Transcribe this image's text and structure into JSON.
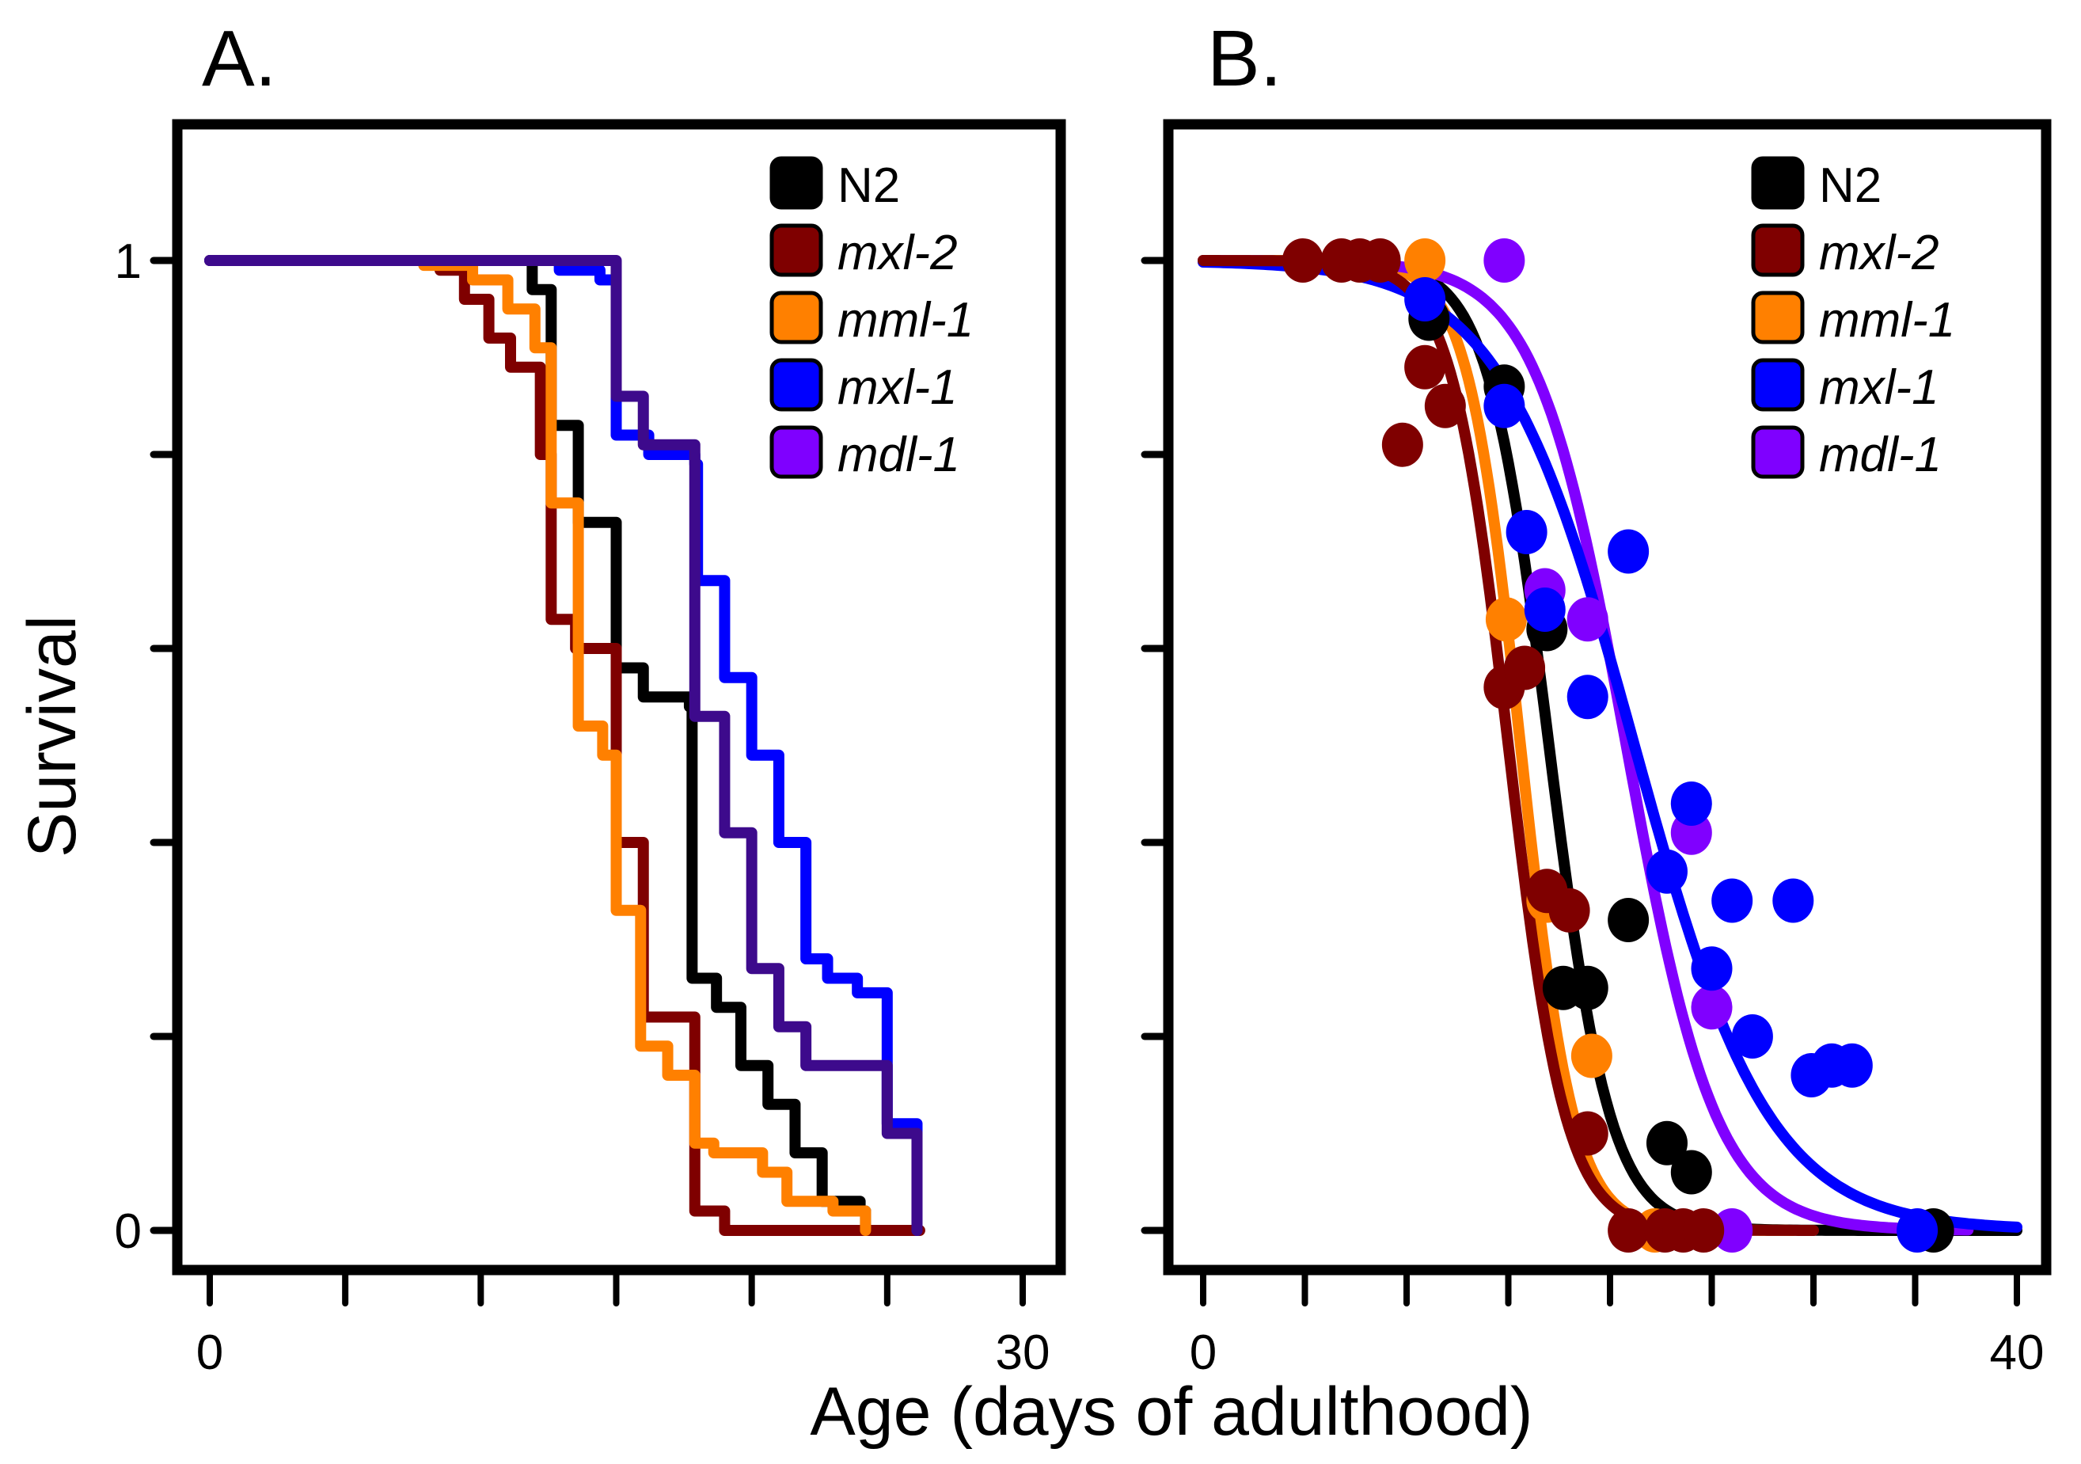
{
  "chart_data": [
    {
      "panel": "A.",
      "type": "line",
      "subtype": "step (Kaplan-Meier survival)",
      "xlabel": "Age (days of adulthood)",
      "ylabel": "Survival",
      "xlim": [
        0,
        30
      ],
      "ylim": [
        0,
        1
      ],
      "x_ticks": [
        0,
        5,
        10,
        15,
        20,
        25,
        30
      ],
      "x_tick_labels": [
        "0",
        "",
        "",
        "",
        "",
        "",
        "30"
      ],
      "y_ticks": [
        0,
        0.2,
        0.4,
        0.6,
        0.8,
        1
      ],
      "y_tick_labels": [
        "0",
        "",
        "",
        "",
        "",
        "1"
      ],
      "legend": {
        "position": "top-right",
        "entries": [
          "N2",
          "mxl-2",
          "mml-1",
          "mxl-1",
          "mdl-1"
        ],
        "italic": [
          false,
          true,
          true,
          true,
          true
        ]
      },
      "series": [
        {
          "name": "N2",
          "color": "#000000",
          "steps": [
            [
              0,
              1
            ],
            [
              11.9,
              0.97
            ],
            [
              12.6,
              0.83
            ],
            [
              13.6,
              0.73
            ],
            [
              15.0,
              0.58
            ],
            [
              16.0,
              0.55
            ],
            [
              17.7,
              0.54
            ],
            [
              17.8,
              0.26
            ],
            [
              18.7,
              0.23
            ],
            [
              19.6,
              0.17
            ],
            [
              20.6,
              0.13
            ],
            [
              21.6,
              0.08
            ],
            [
              22.6,
              0.03
            ],
            [
              24.0,
              0.02
            ],
            [
              24.2,
              0
            ]
          ],
          "end": 24.2
        },
        {
          "name": "mxl-2",
          "color": "#7F0000",
          "steps": [
            [
              0,
              1
            ],
            [
              8.5,
              0.99
            ],
            [
              9.4,
              0.96
            ],
            [
              10.3,
              0.92
            ],
            [
              11.1,
              0.89
            ],
            [
              12.2,
              0.8
            ],
            [
              12.6,
              0.63
            ],
            [
              13.5,
              0.6
            ],
            [
              15.0,
              0.4
            ],
            [
              16.0,
              0.22
            ],
            [
              17.9,
              0.02
            ],
            [
              19.0,
              0
            ]
          ],
          "end": 26.2
        },
        {
          "name": "mml-1",
          "color": "#FF8000",
          "steps": [
            [
              0,
              1
            ],
            [
              7.9,
              0.995
            ],
            [
              9.7,
              0.98
            ],
            [
              11.0,
              0.95
            ],
            [
              12.0,
              0.91
            ],
            [
              12.6,
              0.75
            ],
            [
              13.6,
              0.52
            ],
            [
              14.5,
              0.49
            ],
            [
              15.0,
              0.33
            ],
            [
              15.9,
              0.19
            ],
            [
              16.9,
              0.16
            ],
            [
              17.9,
              0.09
            ],
            [
              18.6,
              0.08
            ],
            [
              20.4,
              0.06
            ],
            [
              21.3,
              0.03
            ],
            [
              23.0,
              0.02
            ],
            [
              24.2,
              0
            ]
          ],
          "end": 24.2
        },
        {
          "name": "mxl-1",
          "color": "#0000FF",
          "steps": [
            [
              0,
              1
            ],
            [
              12.9,
              0.99
            ],
            [
              14.4,
              0.98
            ],
            [
              15.0,
              0.82
            ],
            [
              16.2,
              0.8
            ],
            [
              17.9,
              0.79
            ],
            [
              18.0,
              0.67
            ],
            [
              19.0,
              0.57
            ],
            [
              20.0,
              0.49
            ],
            [
              21.0,
              0.4
            ],
            [
              22.0,
              0.28
            ],
            [
              22.8,
              0.26
            ],
            [
              23.9,
              0.245
            ],
            [
              25.0,
              0.11
            ],
            [
              26.1,
              0
            ]
          ],
          "end": 26.1
        },
        {
          "name": "mdl-1",
          "color": "#3D0A8C",
          "steps": [
            [
              0,
              1
            ],
            [
              15.0,
              0.86
            ],
            [
              16.0,
              0.81
            ],
            [
              17.9,
              0.53
            ],
            [
              19.0,
              0.41
            ],
            [
              20.0,
              0.27
            ],
            [
              21.0,
              0.21
            ],
            [
              22.0,
              0.17
            ],
            [
              25.0,
              0.1
            ],
            [
              26.1,
              0
            ]
          ],
          "end": 26.1
        }
      ]
    },
    {
      "panel": "B.",
      "type": "scatter",
      "subtype": "scatter with fitted sigmoid survival curves",
      "xlabel": "Age (days of adulthood)",
      "ylabel": "Survival",
      "xlim": [
        0,
        40
      ],
      "ylim": [
        0,
        1
      ],
      "x_ticks": [
        0,
        5,
        10,
        15,
        20,
        25,
        30,
        35,
        40
      ],
      "x_tick_labels": [
        "0",
        "",
        "",
        "",
        "",
        "",
        "",
        "",
        "40"
      ],
      "y_ticks": [
        0,
        0.2,
        0.4,
        0.6,
        0.8,
        1
      ],
      "y_tick_labels": [
        "",
        "",
        "",
        "",
        "",
        ""
      ],
      "legend": {
        "position": "top-right",
        "entries": [
          "N2",
          "mxl-2",
          "mml-1",
          "mxl-1",
          "mdl-1"
        ],
        "italic": [
          false,
          true,
          true,
          true,
          true
        ]
      },
      "series": [
        {
          "name": "N2",
          "color": "#000000",
          "points": [
            [
              11.1,
              0.94
            ],
            [
              14.8,
              0.87
            ],
            [
              16.9,
              0.62
            ],
            [
              17.7,
              0.25
            ],
            [
              18.9,
              0.25
            ],
            [
              20.9,
              0.32
            ],
            [
              22.8,
              0.09
            ],
            [
              24.0,
              0.06
            ],
            [
              35.9,
              0
            ]
          ],
          "fit": {
            "model": "logistic",
            "median": 17.0,
            "scale": 1.5,
            "x_range": [
              0,
              40
            ]
          }
        },
        {
          "name": "mml-1",
          "color": "#FF8000",
          "points": [
            [
              10.9,
              1.0
            ],
            [
              14.9,
              0.63
            ],
            [
              16.9,
              0.34
            ],
            [
              19.1,
              0.18
            ],
            [
              22.2,
              0
            ]
          ],
          "fit": {
            "model": "logistic",
            "median": 15.6,
            "scale": 1.3,
            "x_range": [
              0,
              29
            ]
          }
        },
        {
          "name": "mdl-1",
          "color": "#8000FF",
          "points": [
            [
              14.8,
              1.0
            ],
            [
              16.8,
              0.66
            ],
            [
              18.9,
              0.63
            ],
            [
              24.0,
              0.41
            ],
            [
              25.0,
              0.23
            ],
            [
              26.0,
              0
            ]
          ],
          "fit": {
            "model": "logistic",
            "median": 20.8,
            "scale": 2.2,
            "x_range": [
              0,
              37.6
            ]
          }
        },
        {
          "name": "mxl-1",
          "color": "#0000FF",
          "points": [
            [
              10.9,
              0.96
            ],
            [
              14.8,
              0.85
            ],
            [
              15.9,
              0.72
            ],
            [
              16.8,
              0.64
            ],
            [
              18.9,
              0.55
            ],
            [
              20.9,
              0.7
            ],
            [
              22.8,
              0.37
            ],
            [
              24.0,
              0.44
            ],
            [
              25.0,
              0.27
            ],
            [
              26.0,
              0.34
            ],
            [
              27.0,
              0.2
            ],
            [
              29.0,
              0.34
            ],
            [
              29.9,
              0.16
            ],
            [
              30.9,
              0.17
            ],
            [
              31.9,
              0.17
            ],
            [
              35.1,
              0
            ]
          ],
          "fit": {
            "model": "logistic",
            "median": 21.2,
            "scale": 3.3,
            "x_range": [
              0,
              40
            ]
          }
        },
        {
          "name": "mxl-2",
          "color": "#7F0000",
          "points": [
            [
              4.9,
              1.0
            ],
            [
              6.8,
              1.0
            ],
            [
              7.7,
              1.0
            ],
            [
              8.7,
              1.0
            ],
            [
              10.9,
              0.89
            ],
            [
              11.9,
              0.85
            ],
            [
              9.8,
              0.81
            ],
            [
              14.8,
              0.56
            ],
            [
              15.8,
              0.58
            ],
            [
              16.9,
              0.35
            ],
            [
              18.0,
              0.33
            ],
            [
              18.9,
              0.1
            ],
            [
              20.9,
              0
            ],
            [
              22.7,
              0
            ],
            [
              23.6,
              0
            ],
            [
              24.6,
              0
            ]
          ],
          "fit": {
            "model": "logistic",
            "median": 15.0,
            "scale": 1.4,
            "x_range": [
              0,
              30
            ]
          }
        }
      ]
    }
  ],
  "figure": {
    "panel_a_label": "A.",
    "panel_b_label": "B.",
    "ylabel": "Survival",
    "xlabel": "Age (days of adulthood)"
  },
  "legend": [
    {
      "label": "N2",
      "color": "#000000",
      "italic": false
    },
    {
      "label": "mxl-2",
      "color": "#7F0000",
      "italic": true
    },
    {
      "label": "mml-1",
      "color": "#FF8000",
      "italic": true
    },
    {
      "label": "mxl-1",
      "color": "#0000FF",
      "italic": true
    },
    {
      "label": "mdl-1",
      "color": "#7F00FF",
      "italic": true
    }
  ]
}
